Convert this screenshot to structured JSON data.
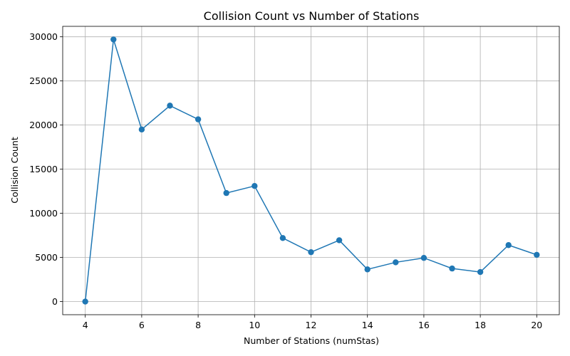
{
  "chart_data": {
    "type": "line",
    "title": "Collision Count vs Number of Stations",
    "xlabel": "Number of Stations (numStas)",
    "ylabel": "Collision Count",
    "x": [
      4,
      5,
      6,
      7,
      8,
      9,
      10,
      11,
      12,
      13,
      14,
      15,
      16,
      17,
      18,
      19,
      20
    ],
    "series": [
      {
        "name": "",
        "values": [
          0,
          29700,
          19500,
          22200,
          20650,
          12300,
          13100,
          7200,
          5600,
          6950,
          3650,
          4450,
          4950,
          3750,
          3350,
          6400,
          5300
        ]
      }
    ],
    "xlim": [
      3.2,
      20.8
    ],
    "ylim": [
      -1485,
      31185
    ],
    "xticks": [
      "4",
      "6",
      "8",
      "10",
      "12",
      "14",
      "16",
      "18",
      "20"
    ],
    "yticks": [
      "0",
      "5000",
      "10000",
      "15000",
      "20000",
      "25000",
      "30000"
    ],
    "grid": true,
    "marker": "circle",
    "color": "#1f77b4"
  }
}
